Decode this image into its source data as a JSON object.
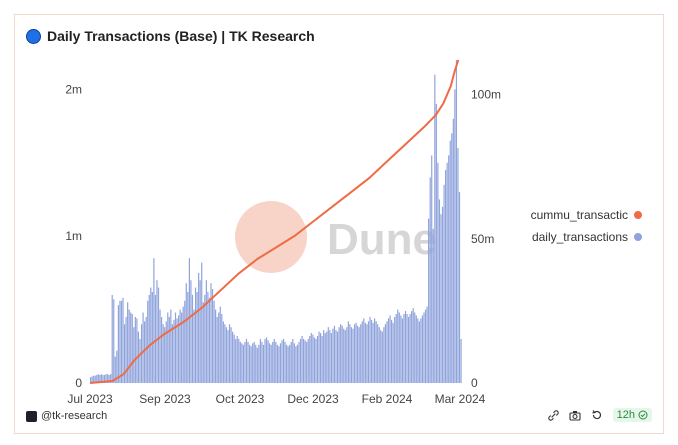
{
  "header": {
    "title": "Daily Transactions (Base) | TK Research"
  },
  "footer": {
    "author": "@tk-research",
    "refresh_label": "12h"
  },
  "icons": {
    "title_logo": "circle-logo-icon",
    "author_badge": "dune-badge-icon",
    "link": "link-icon",
    "camera": "camera-icon",
    "refresh": "refresh-icon",
    "check": "check-circle-icon"
  },
  "colors": {
    "bars": "#8fa3dc",
    "line": "#ef6b45",
    "watermark_circle": "#f6c5b5",
    "watermark_text": "#cfcfcf"
  },
  "watermark": {
    "text": "Dune"
  },
  "chart_data": {
    "type": "bar",
    "title": "Daily Transactions (Base) | TK Research",
    "x_range": [
      "2023-07-01",
      "2024-03-10"
    ],
    "x_ticks": [
      "Jul 2023",
      "Sep 2023",
      "Oct 2023",
      "Dec 2023",
      "Feb 2024",
      "Mar 2024"
    ],
    "y_left": {
      "ticks": [
        "0",
        "1m",
        "2m"
      ],
      "range": [
        0,
        2200000
      ]
    },
    "y_right": {
      "ticks": [
        "0",
        "50m",
        "100m"
      ],
      "range": [
        0,
        112000000
      ]
    },
    "legend": {
      "position": "right",
      "entries": [
        "cummu_transactic",
        "daily_transactions"
      ]
    },
    "series": [
      {
        "name": "daily_transactions",
        "type": "bar",
        "axis": "left",
        "values": [
          40000,
          45000,
          50000,
          50000,
          55000,
          60000,
          55000,
          60000,
          55000,
          55000,
          60000,
          60000,
          55000,
          60000,
          600000,
          570000,
          180000,
          220000,
          530000,
          560000,
          560000,
          580000,
          400000,
          450000,
          550000,
          500000,
          480000,
          470000,
          380000,
          450000,
          440000,
          350000,
          300000,
          400000,
          480000,
          420000,
          450000,
          560000,
          600000,
          650000,
          620000,
          850000,
          600000,
          700000,
          650000,
          500000,
          450000,
          400000,
          380000,
          420000,
          480000,
          450000,
          500000,
          400000,
          430000,
          480000,
          440000,
          460000,
          500000,
          480000,
          520000,
          560000,
          680000,
          620000,
          850000,
          700000,
          600000,
          500000,
          650000,
          620000,
          750000,
          700000,
          820000,
          550000,
          600000,
          700000,
          620000,
          580000,
          680000,
          640000,
          560000,
          500000,
          450000,
          480000,
          520000,
          470000,
          420000,
          400000,
          380000,
          360000,
          400000,
          380000,
          350000,
          330000,
          300000,
          320000,
          300000,
          280000,
          270000,
          260000,
          280000,
          300000,
          280000,
          260000,
          250000,
          270000,
          280000,
          260000,
          240000,
          260000,
          300000,
          280000,
          260000,
          300000,
          310000,
          290000,
          270000,
          260000,
          280000,
          300000,
          280000,
          260000,
          250000,
          270000,
          290000,
          300000,
          280000,
          260000,
          250000,
          260000,
          280000,
          300000,
          270000,
          250000,
          260000,
          280000,
          300000,
          320000,
          300000,
          290000,
          280000,
          300000,
          320000,
          340000,
          330000,
          310000,
          300000,
          320000,
          350000,
          340000,
          320000,
          360000,
          340000,
          350000,
          380000,
          360000,
          340000,
          370000,
          390000,
          360000,
          350000,
          380000,
          400000,
          390000,
          370000,
          360000,
          380000,
          420000,
          400000,
          380000,
          370000,
          400000,
          410000,
          390000,
          380000,
          400000,
          420000,
          440000,
          410000,
          400000,
          420000,
          450000,
          430000,
          410000,
          440000,
          420000,
          400000,
          380000,
          360000,
          350000,
          380000,
          400000,
          420000,
          440000,
          460000,
          430000,
          410000,
          450000,
          470000,
          500000,
          480000,
          460000,
          440000,
          470000,
          490000,
          470000,
          450000,
          470000,
          490000,
          510000,
          480000,
          460000,
          440000,
          420000,
          440000,
          460000,
          480000,
          500000,
          520000,
          1120000,
          1400000,
          1550000,
          1050000,
          2100000,
          1900000,
          1500000,
          1250000,
          1150000,
          1200000,
          1350000,
          1450000,
          1500000,
          1550000,
          1650000,
          1700000,
          1800000,
          2000000,
          2200000,
          1600000,
          1300000,
          300000
        ]
      },
      {
        "name": "cummu_transactic",
        "type": "line",
        "axis": "right",
        "points": [
          [
            0,
            0
          ],
          [
            0.06,
            0.7
          ],
          [
            0.09,
            3
          ],
          [
            0.12,
            8
          ],
          [
            0.16,
            13
          ],
          [
            0.2,
            17
          ],
          [
            0.25,
            21
          ],
          [
            0.3,
            26
          ],
          [
            0.35,
            32
          ],
          [
            0.4,
            38
          ],
          [
            0.45,
            43
          ],
          [
            0.5,
            47
          ],
          [
            0.55,
            51
          ],
          [
            0.6,
            56
          ],
          [
            0.65,
            61
          ],
          [
            0.7,
            66
          ],
          [
            0.75,
            71
          ],
          [
            0.8,
            77
          ],
          [
            0.85,
            83
          ],
          [
            0.9,
            89
          ],
          [
            0.93,
            93
          ],
          [
            0.95,
            97
          ],
          [
            0.97,
            103
          ],
          [
            0.98,
            108
          ],
          [
            0.99,
            112
          ]
        ]
      }
    ]
  }
}
